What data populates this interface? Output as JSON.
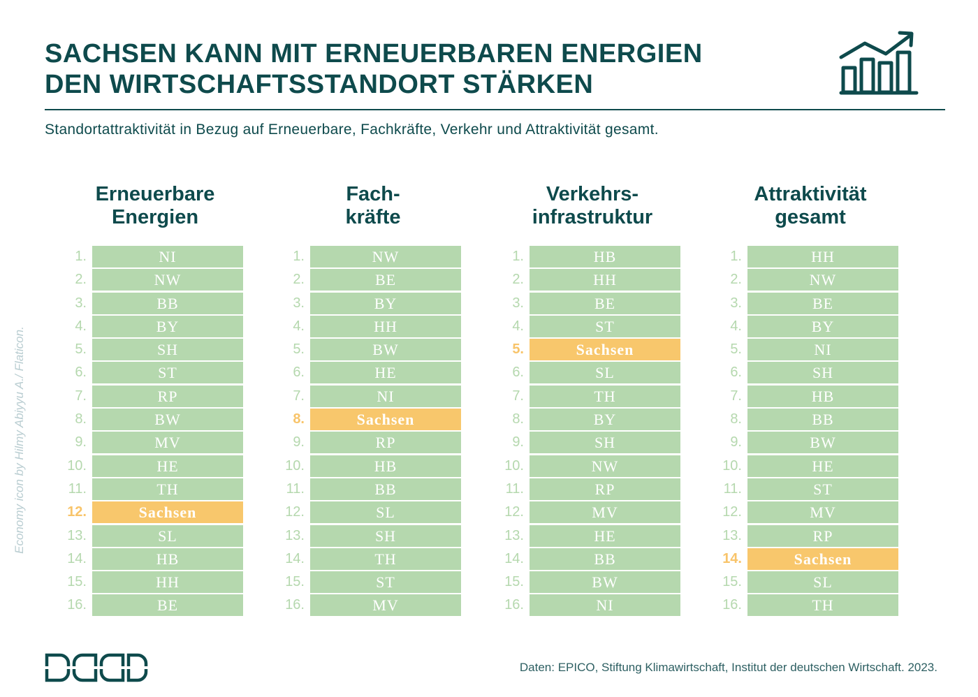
{
  "title": {
    "line1": "SACHSEN KANN MIT ERNEUERBAREN ENERGIEN",
    "line2": "DEN WIRTSCHAFTSSTANDORT STÄRKEN"
  },
  "title_icon": "growth-chart-icon",
  "subtitle": "Standortattraktivität in Bezug auf Erneuerbare, Fachkräfte, Verkehr und Attraktivität gesamt.",
  "credit": "Economy icon by Hilmy Abiyyu A./ Flaticon.",
  "source": "Daten: EPICO, Stiftung Klimawirtschaft, Institut der deutschen Wirtschaft. 2023.",
  "logo": "brand-logo",
  "colors": {
    "primary": "#0e4a4c",
    "row": "#b5d8ae",
    "highlight": "#f8c76c",
    "highlight_rank": "#f8c46a",
    "credit": "#b9cdd1"
  },
  "chart_data": {
    "type": "table",
    "title": "SACHSEN KANN MIT ERNEUERBAREN ENERGIEN DEN WIRTSCHAFTSSTANDORT STÄRKEN",
    "subtitle": "Standortattraktivität in Bezug auf Erneuerbare, Fachkräfte, Verkehr und Attraktivität gesamt.",
    "highlight": "Sachsen",
    "ranks": [
      "1.",
      "2.",
      "3.",
      "4.",
      "5.",
      "6.",
      "7.",
      "8.",
      "9.",
      "10.",
      "11.",
      "12.",
      "13.",
      "14.",
      "15.",
      "16."
    ],
    "columns": [
      {
        "header": [
          "Erneuerbare",
          "Energien"
        ],
        "ranking": [
          "NI",
          "NW",
          "BB",
          "BY",
          "SH",
          "ST",
          "RP",
          "BW",
          "MV",
          "HE",
          "TH",
          "Sachsen",
          "SL",
          "HB",
          "HH",
          "BE"
        ],
        "sachsen_rank": 12
      },
      {
        "header": [
          "Fach-",
          "kräfte"
        ],
        "ranking": [
          "NW",
          "BE",
          "BY",
          "HH",
          "BW",
          "HE",
          "NI",
          "Sachsen",
          "RP",
          "HB",
          "BB",
          "SL",
          "SH",
          "TH",
          "ST",
          "MV"
        ],
        "sachsen_rank": 8
      },
      {
        "header": [
          "Verkehrs-",
          "infrastruktur"
        ],
        "ranking": [
          "HB",
          "HH",
          "BE",
          "ST",
          "Sachsen",
          "SL",
          "TH",
          "BY",
          "SH",
          "NW",
          "RP",
          "MV",
          "HE",
          "BB",
          "BW",
          "NI"
        ],
        "sachsen_rank": 5
      },
      {
        "header": [
          "Attraktivität",
          "gesamt"
        ],
        "ranking": [
          "HH",
          "NW",
          "BE",
          "BY",
          "NI",
          "SH",
          "HB",
          "BB",
          "BW",
          "HE",
          "ST",
          "MV",
          "RP",
          "Sachsen",
          "SL",
          "TH"
        ],
        "sachsen_rank": 14
      }
    ]
  }
}
